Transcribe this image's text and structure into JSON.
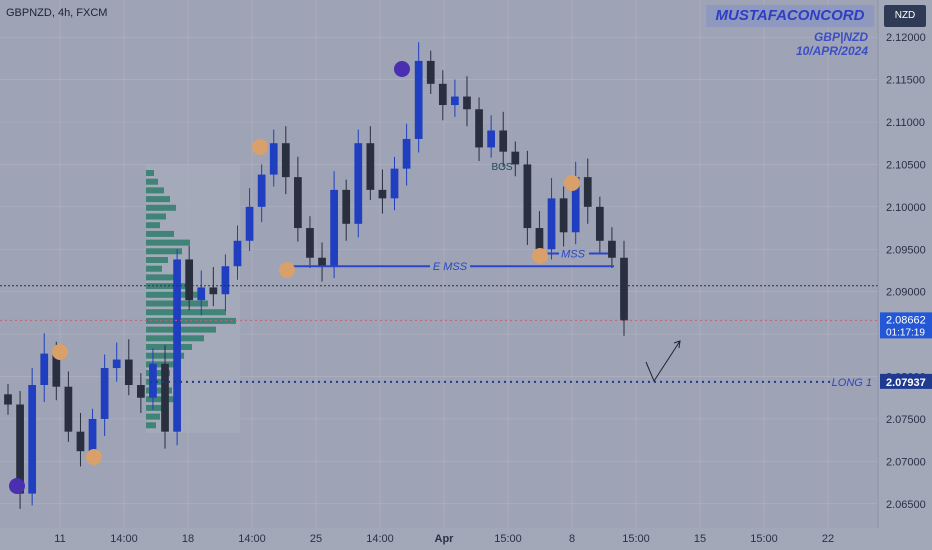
{
  "header": {
    "symbol": "GBPNZD, 4h, FXCM",
    "author": "MUSTAFACONCORD",
    "pair_label": "GBP|NZD",
    "date_label": "10/APR/2024",
    "currency_button": "NZD"
  },
  "colors": {
    "background": "#9ea3b5",
    "candle": "#1f3fc0",
    "candle_dark": "#2a2f3f",
    "swing_high": "#d9a06a",
    "swing_low": "#4a2fb0",
    "annotation": "#2b46c8",
    "price_box": "#2457d6",
    "long_box": "#1f3a8f",
    "volume_profile": "#2e7d6b"
  },
  "chart_data": {
    "type": "candlestick",
    "symbol": "GBPNZD",
    "timeframe": "4h",
    "ylim": [
      2.0625,
      2.1232
    ],
    "y_ticks": [
      "2.06500",
      "2.07000",
      "2.07500",
      "2.08000",
      "2.08500",
      "2.09000",
      "2.09500",
      "2.10000",
      "2.10500",
      "2.11000",
      "2.11500",
      "2.12000"
    ],
    "x_ticks": [
      "11",
      "14:00",
      "18",
      "14:00",
      "25",
      "14:00",
      "Apr",
      "15:00",
      "8",
      "15:00",
      "15",
      "15:00",
      "22"
    ],
    "current_price": {
      "value": "2.08662",
      "countdown": "01:17:19"
    },
    "long_price": "2.07937",
    "points": [
      2.0767,
      2.0662,
      2.079,
      2.0827,
      2.0788,
      2.0735,
      2.0712,
      2.075,
      2.081,
      2.082,
      2.079,
      2.0775,
      2.0815,
      2.0735,
      2.0938,
      2.089,
      2.0905,
      2.0897,
      2.093,
      2.096,
      2.1,
      2.1038,
      2.1075,
      2.1035,
      2.0975,
      2.094,
      2.093,
      2.102,
      2.098,
      2.1075,
      2.102,
      2.101,
      2.1045,
      2.108,
      2.1172,
      2.1145,
      2.112,
      2.113,
      2.1115,
      2.107,
      2.109,
      2.1065,
      2.105,
      2.0975,
      2.095,
      2.101,
      2.097,
      2.1035,
      2.1,
      2.096,
      2.094,
      2.0866
    ],
    "annotations": [
      {
        "text": "E MSS",
        "price": 2.093
      },
      {
        "text": "MSS",
        "price": 2.0945
      },
      {
        "text": "BOS",
        "price": 2.1048
      },
      {
        "text": "LONG 1",
        "price": 2.07937
      }
    ]
  }
}
